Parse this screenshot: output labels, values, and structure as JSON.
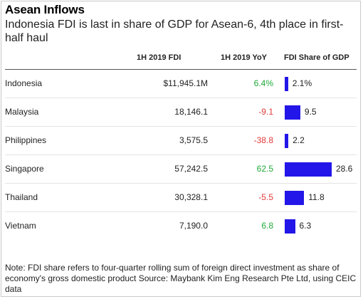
{
  "title": "Asean Inflows",
  "subtitle": "Indonesia FDI is last in share of GDP for Asean-6, 4th place in first-half haul",
  "columns": {
    "fdi": "1H 2019 FDI",
    "yoy": "1H 2019 YoY",
    "share": "FDI Share of GDP"
  },
  "chart_data": {
    "type": "table",
    "title": "Asean Inflows",
    "subtitle": "Indonesia FDI is last in share of GDP for Asean-6, 4th place in first-half haul",
    "columns": [
      "1H 2019 FDI",
      "1H 2019 YoY",
      "FDI Share of GDP"
    ],
    "rows": [
      {
        "country": "Indonesia",
        "fdi": "$11,945.1M",
        "yoy": "6.4%",
        "yoy_value": 6.4,
        "share": 2.1,
        "share_label": "2.1%"
      },
      {
        "country": "Malaysia",
        "fdi": "18,146.1",
        "yoy": "-9.1",
        "yoy_value": -9.1,
        "share": 9.5,
        "share_label": "9.5"
      },
      {
        "country": "Philippines",
        "fdi": "3,575.5",
        "yoy": "-38.8",
        "yoy_value": -38.8,
        "share": 2.2,
        "share_label": "2.2"
      },
      {
        "country": "Singapore",
        "fdi": "57,242.5",
        "yoy": "62.5",
        "yoy_value": 62.5,
        "share": 28.6,
        "share_label": "28.6"
      },
      {
        "country": "Thailand",
        "fdi": "30,328.1",
        "yoy": "-5.5",
        "yoy_value": -5.5,
        "share": 11.8,
        "share_label": "11.8"
      },
      {
        "country": "Vietnam",
        "fdi": "7,190.0",
        "yoy": "6.8",
        "yoy_value": 6.8,
        "share": 6.3,
        "share_label": "6.3"
      }
    ],
    "bar_color": "#2316e8",
    "positive_color": "#1faa3a",
    "negative_color": "#e23a3a"
  },
  "note": "Note: FDI share refers to four-quarter rolling sum of foreign direct investment as share of economy's gross domestic product Source: Maybank Kim Eng Research Pte Ltd, using CEIC data"
}
